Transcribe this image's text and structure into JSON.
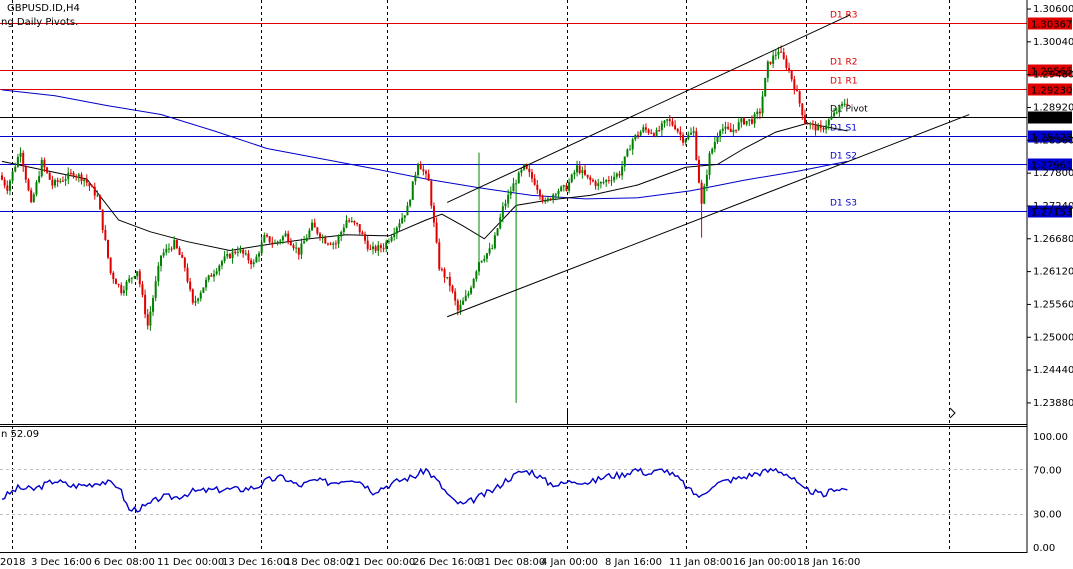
{
  "header": {
    "symbol": "GBPUSD.ID,H4",
    "indicator": "ng Daily Pivots.",
    "rsi_label": "n 52.09"
  },
  "chart_data": {
    "type": "candlestick",
    "symbol": "GBPUSD.ID",
    "timeframe": "H4",
    "price_axis_ticks": [
      "1.30600",
      "1.30040",
      "1.29480",
      "1.28920",
      "1.28360",
      "1.27800",
      "1.27240",
      "1.26680",
      "1.26120",
      "1.25560",
      "1.25000",
      "1.24440",
      "1.23880"
    ],
    "ylim": [
      1.2352,
      1.3072
    ],
    "time_axis_labels": [
      "2018",
      "3 Dec 16:00",
      "6 Dec 08:00",
      "11 Dec 00:00",
      "13 Dec 16:00",
      "18 Dec 08:00",
      "21 Dec 00:00",
      "26 Dec 16:00",
      "31 Dec 08:00",
      "4 Jan 00:00",
      "8 Jan 16:00",
      "11 Jan 08:00",
      "16 Jan 00:00",
      "18 Jan 16:00"
    ],
    "pivot_levels": [
      {
        "name": "D1 R3",
        "value": 1.30367,
        "price_label": "1.30367",
        "color": "#e00000"
      },
      {
        "name": "D1 R2",
        "value": 1.29565,
        "price_label": "1.29565",
        "color": "#e00000"
      },
      {
        "name": "D1 R1",
        "value": 1.2923,
        "price_label": "1.29230",
        "color": "#e00000"
      },
      {
        "name": "D1 Pivot",
        "value": 1.28763,
        "price_label": "1.28763",
        "color": "#000000"
      },
      {
        "name": "D1 S1",
        "value": 1.28428,
        "price_label": "1.28428",
        "color": "#0000d0"
      },
      {
        "name": "D1 S2",
        "value": 1.27961,
        "price_label": "1.27961",
        "color": "#0000d0"
      },
      {
        "name": "D1 S3",
        "value": 1.27153,
        "price_label": "1.27153",
        "color": "#0000d0"
      }
    ],
    "candles": {
      "anchors": [
        [
          0,
          1.2776
        ],
        [
          3,
          1.2755
        ],
        [
          8,
          1.282
        ],
        [
          12,
          1.2725
        ],
        [
          16,
          1.2798
        ],
        [
          20,
          1.276
        ],
        [
          28,
          1.278
        ],
        [
          32,
          1.277
        ],
        [
          37,
          1.274
        ],
        [
          42,
          1.261
        ],
        [
          46,
          1.258
        ],
        [
          52,
          1.2615
        ],
        [
          56,
          1.252
        ],
        [
          61,
          1.264
        ],
        [
          66,
          1.266
        ],
        [
          70,
          1.262
        ],
        [
          73,
          1.2555
        ],
        [
          78,
          1.2595
        ],
        [
          84,
          1.263
        ],
        [
          90,
          1.265
        ],
        [
          96,
          1.2625
        ],
        [
          100,
          1.267
        ],
        [
          104,
          1.266
        ],
        [
          108,
          1.2675
        ],
        [
          113,
          1.2645
        ],
        [
          118,
          1.269
        ],
        [
          123,
          1.2665
        ],
        [
          127,
          1.266
        ],
        [
          131,
          1.27
        ],
        [
          135,
          1.269
        ],
        [
          140,
          1.2648
        ],
        [
          145,
          1.2655
        ],
        [
          150,
          1.269
        ],
        [
          154,
          1.272
        ],
        [
          158,
          1.28
        ],
        [
          162,
          1.2765
        ],
        [
          166,
          1.262
        ],
        [
          170,
          1.259
        ],
        [
          173,
          1.2545
        ],
        [
          177,
          1.2575
        ],
        [
          181,
          1.263
        ],
        [
          186,
          1.2652
        ],
        [
          190,
          1.272
        ],
        [
          194,
          1.276
        ],
        [
          198,
          1.279
        ],
        [
          202,
          1.2765
        ],
        [
          206,
          1.2728
        ],
        [
          210,
          1.275
        ],
        [
          214,
          1.2755
        ],
        [
          218,
          1.279
        ],
        [
          222,
          1.277
        ],
        [
          226,
          1.276
        ],
        [
          230,
          1.277
        ],
        [
          234,
          1.278
        ],
        [
          239,
          1.2838
        ],
        [
          243,
          1.2855
        ],
        [
          248,
          1.2848
        ],
        [
          252,
          1.287
        ],
        [
          255,
          1.286
        ],
        [
          258,
          1.2838
        ],
        [
          262,
          1.285
        ],
        [
          265,
          1.2725
        ],
        [
          268,
          1.281
        ],
        [
          272,
          1.2858
        ],
        [
          276,
          1.285
        ],
        [
          280,
          1.2868
        ],
        [
          284,
          1.287
        ],
        [
          287,
          1.2885
        ],
        [
          290,
          1.2965
        ],
        [
          294,
          1.299
        ],
        [
          298,
          1.2955
        ],
        [
          301,
          1.2915
        ],
        [
          304,
          1.2868
        ],
        [
          307,
          1.286
        ],
        [
          310,
          1.2853
        ],
        [
          313,
          1.287
        ],
        [
          316,
          1.2885
        ],
        [
          319,
          1.29
        ]
      ],
      "count": 320
    },
    "moving_averages": [
      {
        "name": "blue slow MA",
        "color": "#0000c8",
        "points": [
          [
            0,
            1.2922
          ],
          [
            20,
            1.2912
          ],
          [
            40,
            1.2895
          ],
          [
            60,
            1.288
          ],
          [
            80,
            1.2852
          ],
          [
            100,
            1.2822
          ],
          [
            120,
            1.2805
          ],
          [
            140,
            1.2788
          ],
          [
            160,
            1.277
          ],
          [
            180,
            1.2755
          ],
          [
            200,
            1.2742
          ],
          [
            220,
            1.2736
          ],
          [
            240,
            1.2738
          ],
          [
            260,
            1.275
          ],
          [
            280,
            1.2768
          ],
          [
            300,
            1.2783
          ],
          [
            319,
            1.28
          ]
        ]
      },
      {
        "name": "black fast MA",
        "color": "#000000",
        "points": [
          [
            0,
            1.28
          ],
          [
            16,
            1.2785
          ],
          [
            32,
            1.277
          ],
          [
            44,
            1.27
          ],
          [
            56,
            1.268
          ],
          [
            70,
            1.2663
          ],
          [
            86,
            1.2648
          ],
          [
            100,
            1.2658
          ],
          [
            116,
            1.2668
          ],
          [
            130,
            1.2675
          ],
          [
            146,
            1.2673
          ],
          [
            160,
            1.27
          ],
          [
            166,
            1.271
          ],
          [
            174,
            1.269
          ],
          [
            182,
            1.2668
          ],
          [
            194,
            1.2725
          ],
          [
            206,
            1.2734
          ],
          [
            222,
            1.2742
          ],
          [
            240,
            1.276
          ],
          [
            258,
            1.279
          ],
          [
            270,
            1.2795
          ],
          [
            280,
            1.2822
          ],
          [
            292,
            1.285
          ],
          [
            304,
            1.2865
          ],
          [
            319,
            1.2852
          ]
        ]
      }
    ],
    "trend_channel": {
      "upper": {
        "from": [
          168,
          1.273
        ],
        "to": [
          320,
          1.305
        ]
      },
      "lower": {
        "from": [
          168,
          1.2535
        ],
        "to": [
          365,
          1.288
        ]
      }
    },
    "rsi": {
      "name": "RSI",
      "value_label": "52.09",
      "levels": [
        "100.00",
        "70.00",
        "30.00",
        "0.00"
      ],
      "dashed_levels": [
        70,
        30
      ],
      "anchors": [
        [
          0,
          44
        ],
        [
          6,
          53
        ],
        [
          12,
          52
        ],
        [
          16,
          56
        ],
        [
          20,
          60
        ],
        [
          26,
          55
        ],
        [
          32,
          56
        ],
        [
          38,
          59
        ],
        [
          44,
          55
        ],
        [
          48,
          33
        ],
        [
          54,
          36
        ],
        [
          60,
          45
        ],
        [
          66,
          45
        ],
        [
          72,
          50
        ],
        [
          78,
          51
        ],
        [
          84,
          52
        ],
        [
          90,
          52
        ],
        [
          96,
          54
        ],
        [
          100,
          60
        ],
        [
          106,
          63
        ],
        [
          112,
          55
        ],
        [
          118,
          60
        ],
        [
          124,
          58
        ],
        [
          128,
          60
        ],
        [
          132,
          62
        ],
        [
          136,
          58
        ],
        [
          140,
          50
        ],
        [
          146,
          56
        ],
        [
          150,
          60
        ],
        [
          156,
          64
        ],
        [
          160,
          70
        ],
        [
          164,
          60
        ],
        [
          170,
          42
        ],
        [
          174,
          38
        ],
        [
          180,
          45
        ],
        [
          186,
          52
        ],
        [
          190,
          60
        ],
        [
          196,
          68
        ],
        [
          200,
          68
        ],
        [
          206,
          58
        ],
        [
          210,
          56
        ],
        [
          216,
          60
        ],
        [
          222,
          58
        ],
        [
          228,
          64
        ],
        [
          234,
          65
        ],
        [
          239,
          70
        ],
        [
          244,
          66
        ],
        [
          250,
          70
        ],
        [
          256,
          60
        ],
        [
          260,
          50
        ],
        [
          264,
          45
        ],
        [
          268,
          56
        ],
        [
          274,
          60
        ],
        [
          280,
          63
        ],
        [
          284,
          66
        ],
        [
          288,
          68
        ],
        [
          292,
          70
        ],
        [
          296,
          66
        ],
        [
          299,
          60
        ],
        [
          302,
          52
        ],
        [
          306,
          50
        ],
        [
          310,
          46
        ],
        [
          314,
          53
        ],
        [
          319,
          52
        ]
      ]
    }
  }
}
